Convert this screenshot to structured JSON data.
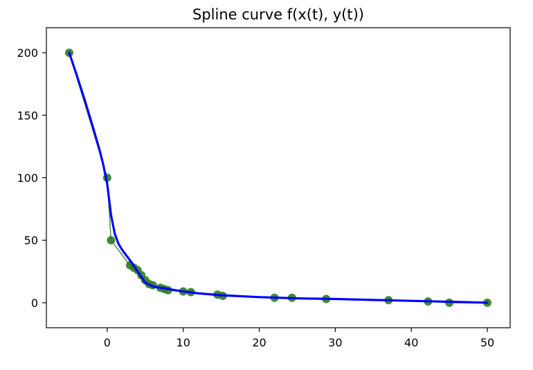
{
  "chart_data": {
    "type": "line",
    "title": "Spline curve f(x(t), y(t))",
    "xlabel": "",
    "ylabel": "",
    "xlim": [
      -8,
      53
    ],
    "ylim": [
      -20,
      220
    ],
    "x_ticks": [
      0,
      10,
      20,
      30,
      40,
      50
    ],
    "y_ticks": [
      0,
      50,
      100,
      150,
      200
    ],
    "x_tick_labels": [
      "0",
      "10",
      "20",
      "30",
      "40",
      "50"
    ],
    "y_tick_labels": [
      "0",
      "50",
      "100",
      "150",
      "200"
    ],
    "grid": false,
    "series": [
      {
        "kind": "data_points",
        "color": "#2e7d1f",
        "marker": "circle",
        "x": [
          -5,
          0,
          0.5,
          3,
          3.5,
          4,
          4.5,
          5,
          5.5,
          6,
          7,
          7.5,
          8,
          10,
          11,
          14.5,
          15.2,
          22,
          24.3,
          28.8,
          37,
          42.2,
          45,
          50
        ],
        "y": [
          200,
          100,
          50,
          30,
          28,
          26,
          22,
          18,
          15,
          14,
          12,
          11,
          10,
          9,
          8.5,
          6.5,
          5.5,
          4,
          4,
          3,
          2,
          1,
          0,
          0
        ]
      },
      {
        "kind": "spline",
        "color": "#0000ff",
        "x": [
          -5,
          -4,
          -3,
          -2,
          -1,
          -0.5,
          0,
          0.5,
          1,
          1.5,
          2,
          3,
          4,
          5,
          6,
          8,
          10,
          12,
          15,
          20,
          25,
          30,
          35,
          40,
          45,
          50
        ],
        "y": [
          200,
          182,
          163,
          143,
          122,
          110,
          95,
          70,
          55,
          47,
          42,
          34,
          25,
          16,
          13,
          11,
          9,
          7.5,
          6,
          4.5,
          3.5,
          3,
          2.2,
          1.5,
          0.8,
          0
        ]
      }
    ]
  }
}
